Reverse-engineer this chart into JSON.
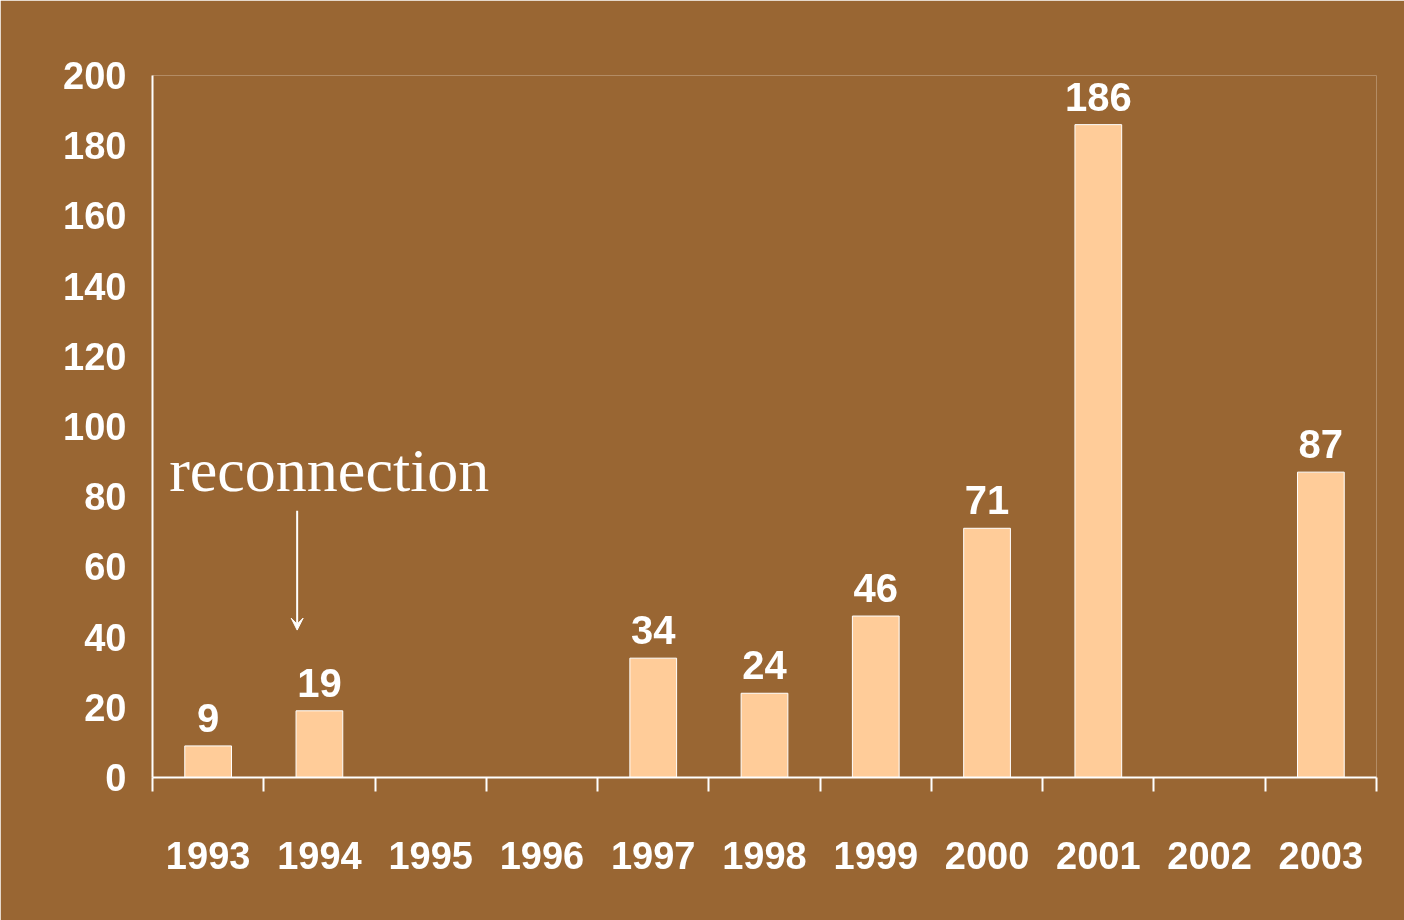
{
  "chart_data": {
    "type": "bar",
    "categories": [
      "1993",
      "1994",
      "1995",
      "1996",
      "1997",
      "1998",
      "1999",
      "2000",
      "2001",
      "2002",
      "2003"
    ],
    "values": [
      9,
      19,
      null,
      null,
      34,
      24,
      46,
      71,
      186,
      null,
      87
    ],
    "color": "#ffcc99",
    "ylim": [
      0,
      200
    ],
    "yticks": [
      0,
      20,
      40,
      60,
      80,
      100,
      120,
      140,
      160,
      180,
      200
    ],
    "grid": false,
    "data_labels": true,
    "annotations": [
      "reconnection"
    ]
  }
}
